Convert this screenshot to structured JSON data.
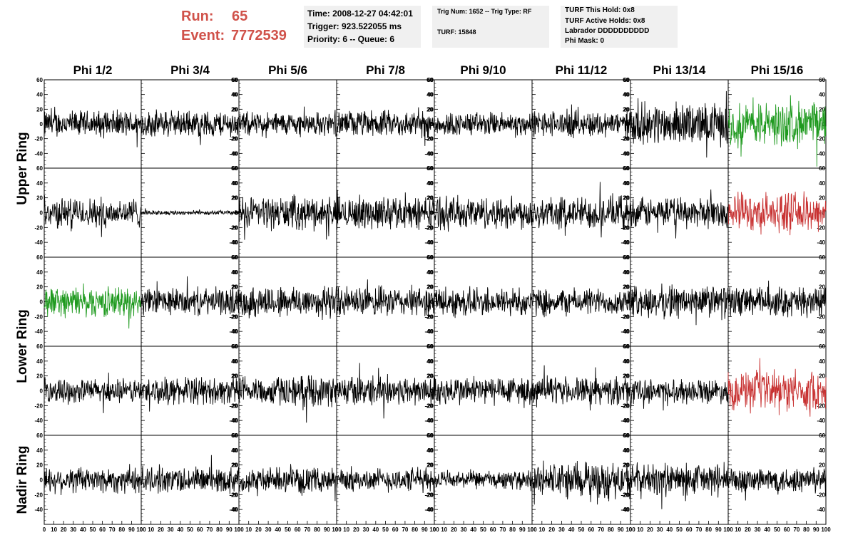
{
  "header": {
    "run_label": "Run:",
    "run_value": "65",
    "event_label": "Event:",
    "event_value": "7772539",
    "accent_color": "#d0524a"
  },
  "box1": {
    "time": "Time: 2008-12-27 04:42:01",
    "trigger": "Trigger: 923.522055 ms",
    "priority": "Priority: 6 -- Queue: 6"
  },
  "box2": {
    "trig": "Trig Num: 1652 -- Trig Type: RF",
    "turf": "TURF: 15848"
  },
  "box3": {
    "hold": "TURF This Hold: 0x8",
    "active": "TURF Active Holds: 0x8",
    "labrador": "Labrador DDDDDDDDDD",
    "phimask": "Phi Mask: 0"
  },
  "chart_data": {
    "type": "line",
    "columns": [
      "Phi 1/2",
      "Phi 3/4",
      "Phi 5/6",
      "Phi 7/8",
      "Phi 9/10",
      "Phi 11/12",
      "Phi 13/14",
      "Phi 15/16"
    ],
    "ring_labels": [
      "Upper Ring",
      "Lower Ring",
      "Nadir Ring"
    ],
    "panel_rows": 5,
    "ylim": [
      -60,
      60
    ],
    "yticks": [
      -60,
      -40,
      -20,
      0,
      20,
      40,
      60
    ],
    "xlim": [
      0,
      100
    ],
    "xticks": [
      0,
      10,
      20,
      30,
      40,
      50,
      60,
      70,
      80,
      90,
      100
    ],
    "colors": {
      "normal": "#000000",
      "green": "#1f9a1f",
      "red": "#c83232"
    },
    "panel_color": [
      [
        "normal",
        "normal",
        "normal",
        "normal",
        "normal",
        "normal",
        "normal",
        "green"
      ],
      [
        "normal",
        "normal",
        "normal",
        "normal",
        "normal",
        "normal",
        "normal",
        "red"
      ],
      [
        "green",
        "normal",
        "normal",
        "normal",
        "normal",
        "normal",
        "normal",
        "normal"
      ],
      [
        "normal",
        "normal",
        "normal",
        "normal",
        "normal",
        "normal",
        "normal",
        "red"
      ],
      [
        "normal",
        "normal",
        "normal",
        "normal",
        "normal",
        "normal",
        "normal",
        "normal"
      ]
    ],
    "panel_amplitude": [
      [
        18,
        18,
        16,
        18,
        16,
        18,
        28,
        30
      ],
      [
        20,
        3,
        22,
        22,
        22,
        22,
        20,
        26
      ],
      [
        20,
        18,
        22,
        20,
        20,
        18,
        22,
        20
      ],
      [
        16,
        18,
        20,
        20,
        20,
        18,
        16,
        26
      ],
      [
        18,
        18,
        16,
        16,
        12,
        24,
        22,
        18
      ]
    ]
  }
}
